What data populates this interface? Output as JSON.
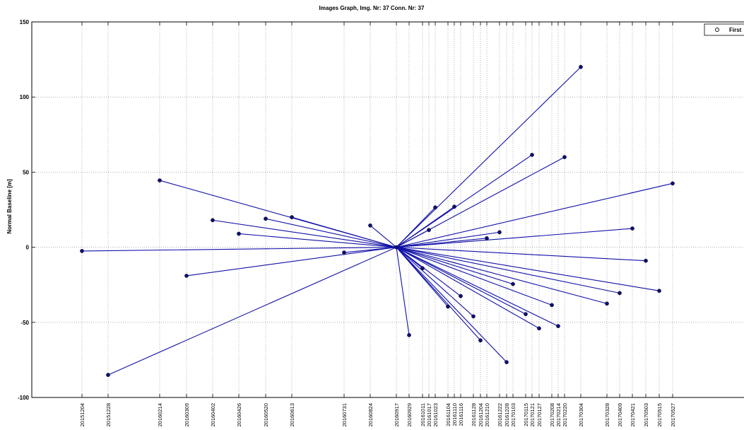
{
  "chart_data": {
    "type": "scatter",
    "title": "Images Graph, Img. Nr: 37 Conn. Nr: 37",
    "xlabel": "",
    "ylabel": "Normal Baseline [m]",
    "ylim": [
      -100,
      150
    ],
    "yticks": [
      -100,
      -50,
      0,
      50,
      100,
      150
    ],
    "grid": true,
    "line_color": "#1010a8",
    "marker_color": "#101070",
    "legend": {
      "placement": "top-right",
      "entries": [
        "First"
      ]
    },
    "x_tick_dates": [
      "20151204",
      "20151228",
      "20160214",
      "20160309",
      "20160402",
      "20160426",
      "20160520",
      "20160613",
      "20160731",
      "20160824",
      "20160917",
      "20160929",
      "20161011",
      "20161017",
      "20161023",
      "20161104",
      "20161110",
      "20161116",
      "20161128",
      "20161204",
      "20161210",
      "20161222",
      "20161228",
      "20170103",
      "20170115",
      "20170121",
      "20170127",
      "20170208",
      "20170214",
      "20170220",
      "20170304",
      "20170328",
      "20170409",
      "20170421",
      "20170503",
      "20170515",
      "20170527"
    ],
    "x_tick_labels": [
      "20151204",
      "20151228",
      "20160214",
      "20160309",
      "20160402",
      "20160426",
      "20160520",
      "20160613",
      "20160731",
      "20160824",
      "20160917",
      "20160929",
      "20161011",
      "20161017",
      "20161023",
      "20161104",
      "20161110",
      "20161116",
      "20161128",
      "20161204",
      "20161210",
      "20161222",
      "20161228",
      "20170103",
      "20170115",
      "20170121",
      "20170127",
      "20170208",
      "20170214",
      "20170220",
      "20170304",
      "20170328",
      "20170409",
      "20170421",
      "20170503",
      "20170515",
      "20170527"
    ],
    "master": {
      "date": "20160917",
      "baseline": 0
    },
    "points": [
      {
        "date": "20151204",
        "baseline": -2.5
      },
      {
        "date": "20151228",
        "baseline": -85
      },
      {
        "date": "20160214",
        "baseline": 44.5
      },
      {
        "date": "20160309",
        "baseline": -19
      },
      {
        "date": "20160402",
        "baseline": 18
      },
      {
        "date": "20160426",
        "baseline": 9
      },
      {
        "date": "20160520",
        "baseline": 19
      },
      {
        "date": "20160613",
        "baseline": 20
      },
      {
        "date": "20160731",
        "baseline": -3.5
      },
      {
        "date": "20160824",
        "baseline": 14.5
      },
      {
        "date": "20160929",
        "baseline": -58.5
      },
      {
        "date": "20161011",
        "baseline": -14
      },
      {
        "date": "20161017",
        "baseline": 11.5
      },
      {
        "date": "20161023",
        "baseline": 26.5
      },
      {
        "date": "20161104",
        "baseline": -39.5
      },
      {
        "date": "20161110",
        "baseline": 27
      },
      {
        "date": "20161116",
        "baseline": -32.5
      },
      {
        "date": "20161128",
        "baseline": -46
      },
      {
        "date": "20161204",
        "baseline": -62
      },
      {
        "date": "20161210",
        "baseline": 6
      },
      {
        "date": "20161222",
        "baseline": 10
      },
      {
        "date": "20161228",
        "baseline": -76.5
      },
      {
        "date": "20170103",
        "baseline": -24.5
      },
      {
        "date": "20170115",
        "baseline": -44.5
      },
      {
        "date": "20170121",
        "baseline": 61.5
      },
      {
        "date": "20170127",
        "baseline": -54
      },
      {
        "date": "20170208",
        "baseline": -38.5
      },
      {
        "date": "20170214",
        "baseline": -52.5
      },
      {
        "date": "20170220",
        "baseline": 60
      },
      {
        "date": "20170304",
        "baseline": 120
      },
      {
        "date": "20170328",
        "baseline": -37.5
      },
      {
        "date": "20170409",
        "baseline": -30.5
      },
      {
        "date": "20170421",
        "baseline": 12.5
      },
      {
        "date": "20170503",
        "baseline": -9
      },
      {
        "date": "20170515",
        "baseline": -29
      },
      {
        "date": "20170527",
        "baseline": 42.5
      }
    ]
  }
}
